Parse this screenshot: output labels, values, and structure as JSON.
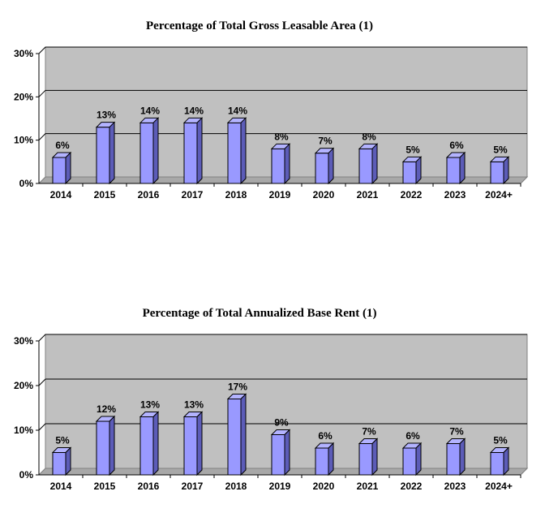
{
  "colors": {
    "bar": "#9999ff",
    "bar_top": "#b3b3ff",
    "bar_side": "#5c5cb8",
    "plot_bg": "#c0c0c0",
    "wall_top": "#d8d8d8"
  },
  "chart_data": [
    {
      "type": "bar",
      "title": "Percentage of Total Gross Leasable Area (1)",
      "categories": [
        "2014",
        "2015",
        "2016",
        "2017",
        "2018",
        "2019",
        "2020",
        "2021",
        "2022",
        "2023",
        "2024+"
      ],
      "values": [
        6,
        13,
        14,
        14,
        14,
        8,
        7,
        8,
        5,
        6,
        5
      ],
      "data_labels": [
        "6%",
        "13%",
        "14%",
        "14%",
        "14%",
        "8%",
        "7%",
        "8%",
        "5%",
        "6%",
        "5%"
      ],
      "ylim": [
        0,
        30
      ],
      "yticks": [
        "0%",
        "10%",
        "20%",
        "30%"
      ],
      "xlabel": "",
      "ylabel": "",
      "grid": true,
      "legend": "none"
    },
    {
      "type": "bar",
      "title": "Percentage of Total Annualized Base Rent (1)",
      "categories": [
        "2014",
        "2015",
        "2016",
        "2017",
        "2018",
        "2019",
        "2020",
        "2021",
        "2022",
        "2023",
        "2024+"
      ],
      "values": [
        5,
        12,
        13,
        13,
        17,
        9,
        6,
        7,
        6,
        7,
        5
      ],
      "data_labels": [
        "5%",
        "12%",
        "13%",
        "13%",
        "17%",
        "9%",
        "6%",
        "7%",
        "6%",
        "7%",
        "5%"
      ],
      "ylim": [
        0,
        30
      ],
      "yticks": [
        "0%",
        "10%",
        "20%",
        "30%"
      ],
      "xlabel": "",
      "ylabel": "",
      "grid": true,
      "legend": "none"
    }
  ]
}
